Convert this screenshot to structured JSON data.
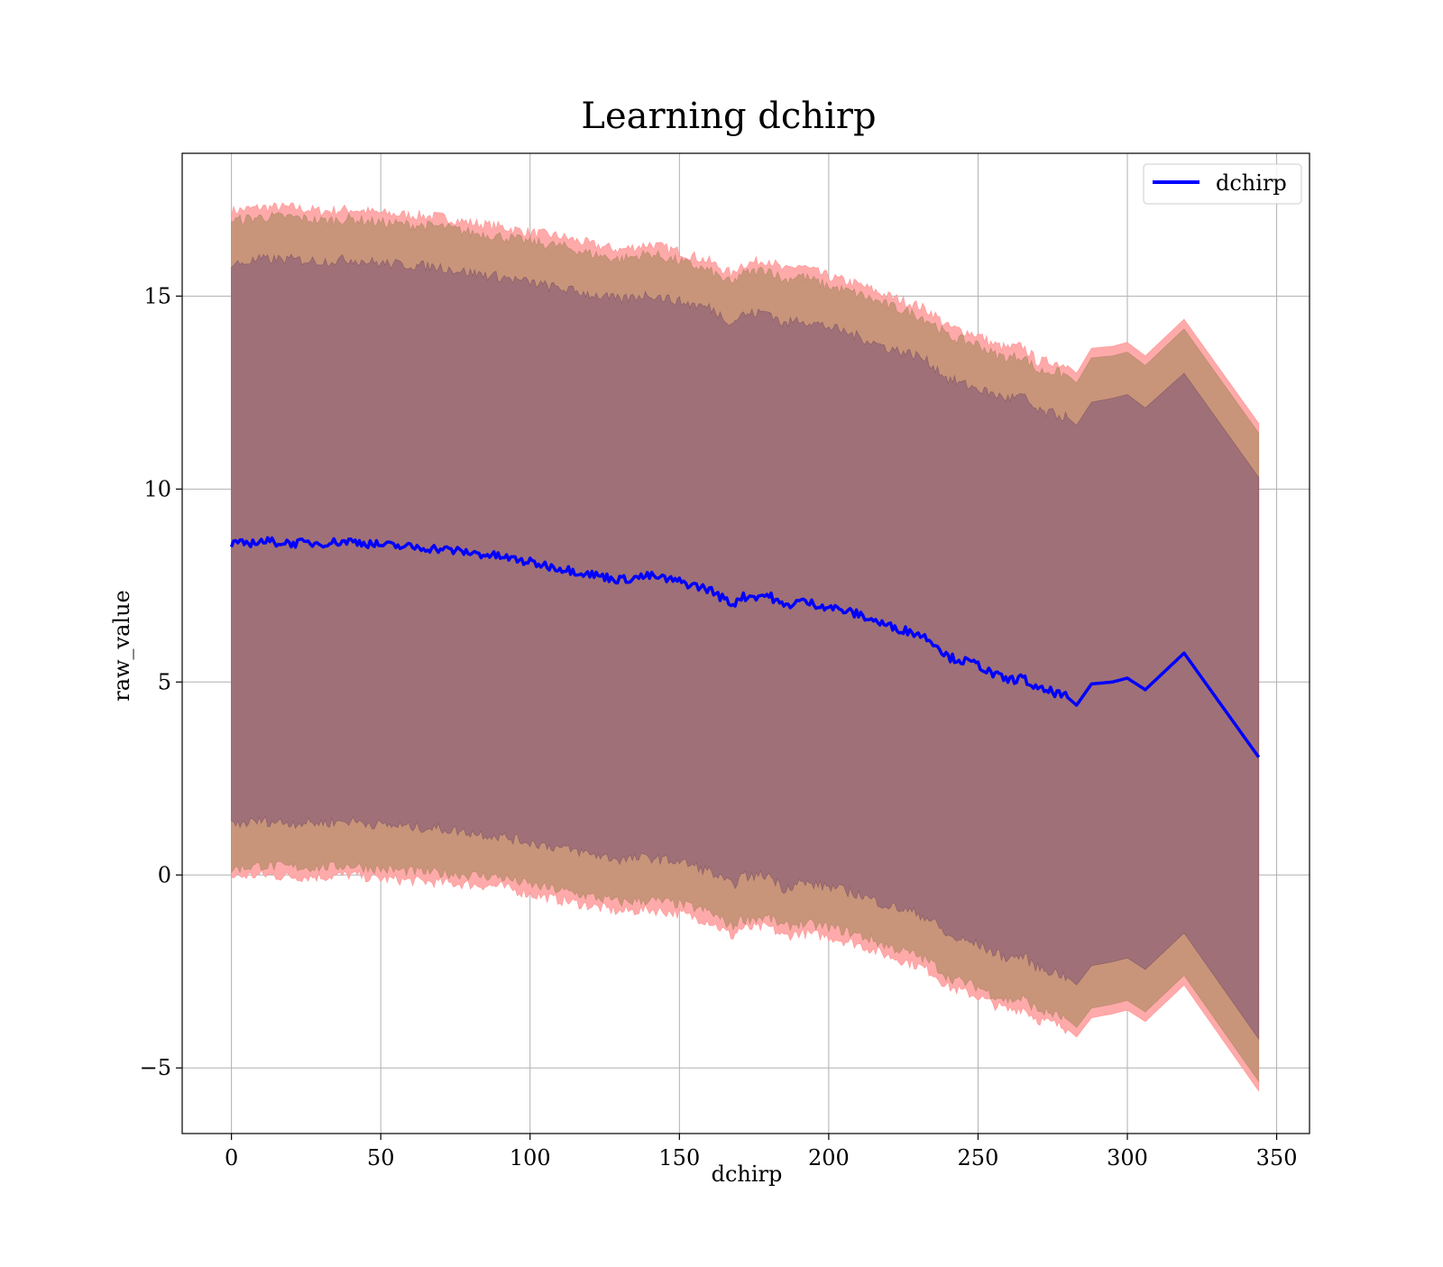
{
  "chart_data": {
    "type": "line",
    "title": "Learning dchirp",
    "xlabel": "dchirp",
    "ylabel": "raw_value",
    "xlim": [
      -16.5,
      361
    ],
    "ylim": [
      -6.7,
      18.7
    ],
    "xticks": [
      0,
      50,
      100,
      150,
      200,
      250,
      300,
      350
    ],
    "xtick_labels": [
      "0",
      "50",
      "100",
      "150",
      "200",
      "250",
      "300",
      "350"
    ],
    "yticks": [
      -5,
      0,
      5,
      10,
      15
    ],
    "ytick_labels": [
      "−5",
      "0",
      "5",
      "10",
      "15"
    ],
    "grid": true,
    "legend": {
      "position": "top-right",
      "entries": [
        "dchirp"
      ]
    },
    "colors": {
      "line": "#0000ff",
      "band_outer": "#ffaaaa",
      "band_mid": "#c8957a",
      "band_inner": "#a07078",
      "grid": "#b0b0b0"
    },
    "series": [
      {
        "name": "dchirp",
        "x": [
          0,
          10,
          20,
          30,
          40,
          50,
          60,
          70,
          80,
          90,
          100,
          110,
          120,
          130,
          140,
          150,
          160,
          168,
          170,
          180,
          185,
          190,
          200,
          210,
          220,
          230,
          235,
          240,
          250,
          255,
          260,
          265,
          270,
          275,
          280,
          283,
          288,
          295,
          300,
          306,
          319,
          344
        ],
        "y": [
          8.55,
          8.65,
          8.6,
          8.6,
          8.65,
          8.55,
          8.5,
          8.45,
          8.35,
          8.25,
          8.1,
          7.95,
          7.8,
          7.65,
          7.75,
          7.6,
          7.4,
          7.0,
          7.2,
          7.25,
          6.95,
          7.1,
          6.95,
          6.75,
          6.45,
          6.25,
          6.05,
          5.65,
          5.45,
          5.2,
          5.05,
          5.1,
          4.8,
          4.75,
          4.6,
          4.4,
          4.95,
          5.0,
          5.1,
          4.8,
          5.75,
          3.05
        ]
      }
    ],
    "bands": [
      {
        "x": [
          0,
          10,
          20,
          30,
          40,
          50,
          60,
          70,
          80,
          90,
          100,
          110,
          120,
          130,
          140,
          150,
          160,
          168,
          170,
          180,
          185,
          190,
          200,
          210,
          220,
          230,
          235,
          240,
          250,
          255,
          260,
          265,
          270,
          275,
          280,
          283,
          288,
          295,
          300,
          306,
          319,
          344
        ],
        "upper": [
          17.2,
          17.3,
          17.3,
          17.2,
          17.25,
          17.15,
          17.1,
          17.05,
          16.9,
          16.8,
          16.65,
          16.55,
          16.35,
          16.2,
          16.35,
          16.15,
          15.9,
          15.55,
          15.8,
          15.95,
          15.65,
          15.8,
          15.5,
          15.3,
          15.0,
          14.75,
          14.55,
          14.2,
          14.0,
          13.75,
          13.65,
          13.7,
          13.3,
          13.3,
          13.2,
          13.0,
          13.65,
          13.7,
          13.8,
          13.45,
          14.4,
          11.7
        ],
        "lower": [
          -0.05,
          0.0,
          -0.05,
          -0.05,
          0.0,
          -0.1,
          -0.15,
          -0.2,
          -0.25,
          -0.3,
          -0.5,
          -0.65,
          -0.8,
          -0.95,
          -0.9,
          -1.0,
          -1.2,
          -1.6,
          -1.4,
          -1.35,
          -1.6,
          -1.5,
          -1.6,
          -1.8,
          -2.1,
          -2.35,
          -2.55,
          -2.9,
          -3.15,
          -3.35,
          -3.5,
          -3.45,
          -3.75,
          -3.85,
          -4.0,
          -4.2,
          -3.7,
          -3.6,
          -3.5,
          -3.8,
          -2.85,
          -5.6
        ]
      },
      {
        "x": [
          0,
          10,
          20,
          30,
          40,
          50,
          60,
          70,
          80,
          90,
          100,
          110,
          120,
          130,
          140,
          150,
          160,
          168,
          170,
          180,
          185,
          190,
          200,
          210,
          220,
          230,
          235,
          240,
          250,
          255,
          260,
          265,
          270,
          275,
          280,
          283,
          288,
          295,
          300,
          306,
          319,
          344
        ],
        "upper": [
          16.95,
          17.05,
          17.05,
          16.95,
          17.0,
          16.9,
          16.85,
          16.8,
          16.65,
          16.55,
          16.4,
          16.3,
          16.1,
          15.95,
          16.1,
          15.9,
          15.65,
          15.3,
          15.55,
          15.7,
          15.4,
          15.55,
          15.25,
          15.05,
          14.75,
          14.5,
          14.3,
          13.95,
          13.75,
          13.5,
          13.4,
          13.45,
          13.05,
          13.05,
          12.95,
          12.75,
          13.4,
          13.45,
          13.55,
          13.2,
          14.15,
          11.45
        ],
        "lower": [
          0.15,
          0.25,
          0.2,
          0.2,
          0.25,
          0.15,
          0.1,
          0.05,
          0.0,
          -0.05,
          -0.25,
          -0.4,
          -0.55,
          -0.7,
          -0.65,
          -0.75,
          -0.95,
          -1.35,
          -1.15,
          -1.1,
          -1.35,
          -1.25,
          -1.35,
          -1.55,
          -1.85,
          -2.1,
          -2.3,
          -2.65,
          -2.9,
          -3.1,
          -3.25,
          -3.2,
          -3.5,
          -3.6,
          -3.75,
          -3.95,
          -3.45,
          -3.35,
          -3.25,
          -3.55,
          -2.6,
          -5.35
        ]
      },
      {
        "x": [
          0,
          10,
          20,
          30,
          40,
          50,
          60,
          70,
          80,
          90,
          100,
          110,
          120,
          130,
          140,
          150,
          160,
          168,
          170,
          180,
          185,
          190,
          200,
          210,
          220,
          230,
          235,
          240,
          250,
          255,
          260,
          265,
          270,
          275,
          280,
          283,
          288,
          295,
          300,
          306,
          319,
          344
        ],
        "upper": [
          15.8,
          15.95,
          15.95,
          15.9,
          15.95,
          15.85,
          15.8,
          15.75,
          15.6,
          15.5,
          15.35,
          15.2,
          15.05,
          14.9,
          15.05,
          14.85,
          14.7,
          14.3,
          14.5,
          14.6,
          14.25,
          14.4,
          14.2,
          13.95,
          13.65,
          13.45,
          13.2,
          12.85,
          12.6,
          12.45,
          12.35,
          12.4,
          12.0,
          11.95,
          11.85,
          11.65,
          12.25,
          12.35,
          12.45,
          12.1,
          13.0,
          10.3
        ],
        "lower": [
          1.3,
          1.4,
          1.35,
          1.35,
          1.4,
          1.3,
          1.25,
          1.2,
          1.1,
          1.0,
          0.85,
          0.7,
          0.55,
          0.4,
          0.45,
          0.35,
          0.1,
          -0.3,
          -0.05,
          0.0,
          -0.35,
          -0.2,
          -0.3,
          -0.5,
          -0.8,
          -1.0,
          -1.2,
          -1.6,
          -1.8,
          -2.0,
          -2.15,
          -2.1,
          -2.4,
          -2.5,
          -2.65,
          -2.85,
          -2.35,
          -2.25,
          -2.15,
          -2.45,
          -1.5,
          -4.25
        ]
      }
    ]
  }
}
